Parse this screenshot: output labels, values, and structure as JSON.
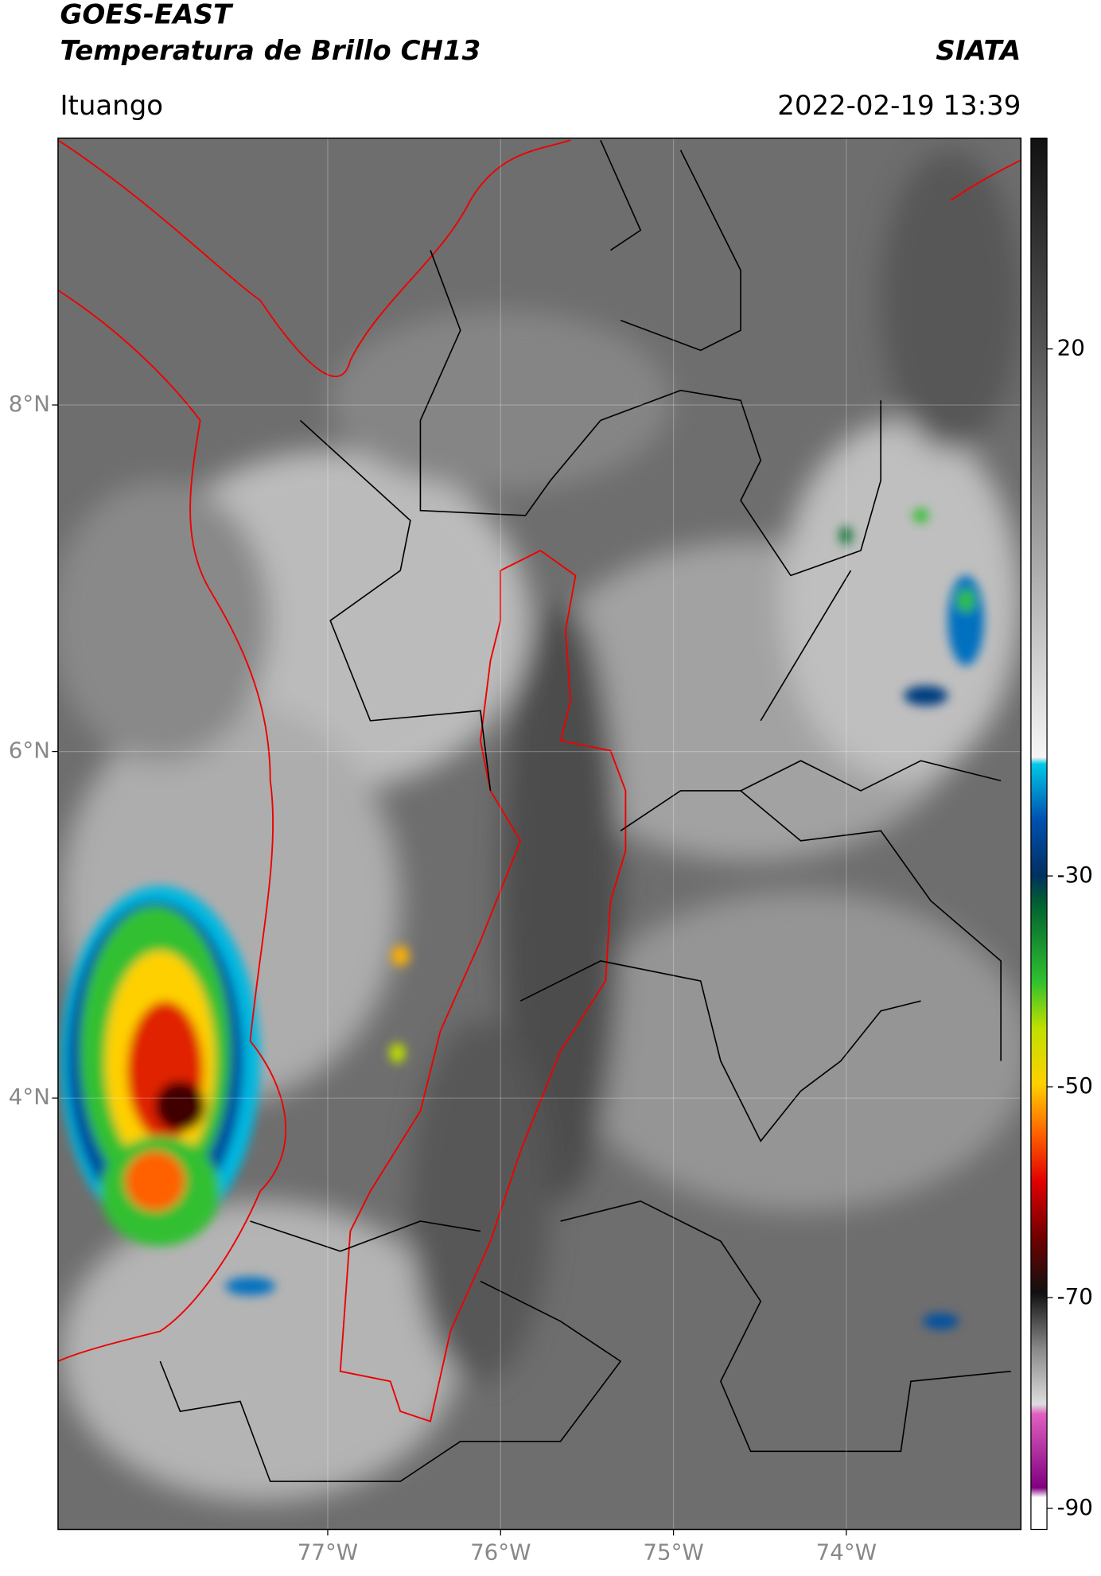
{
  "header": {
    "title": "GOES-EAST",
    "subtitle": "Temperatura de Brillo CH13",
    "agency": "SIATA",
    "location": "Ituango",
    "datetime": "2022-02-19 13:39"
  },
  "map": {
    "xlim": [
      -78.56,
      -72.99
    ],
    "ylim": [
      1.51,
      9.54
    ],
    "xticks": [
      {
        "value": -77,
        "label": "77°W"
      },
      {
        "value": -76,
        "label": "76°W"
      },
      {
        "value": -75,
        "label": "75°W"
      },
      {
        "value": -74,
        "label": "74°W"
      }
    ],
    "yticks": [
      {
        "value": 4,
        "label": "4°N"
      },
      {
        "value": 6,
        "label": "6°N"
      },
      {
        "value": 8,
        "label": "8°N"
      }
    ],
    "grid": true
  },
  "colorbar": {
    "lim": [
      -92,
      40
    ],
    "ticks": [
      -90,
      -70,
      -50,
      -30,
      20
    ]
  }
}
